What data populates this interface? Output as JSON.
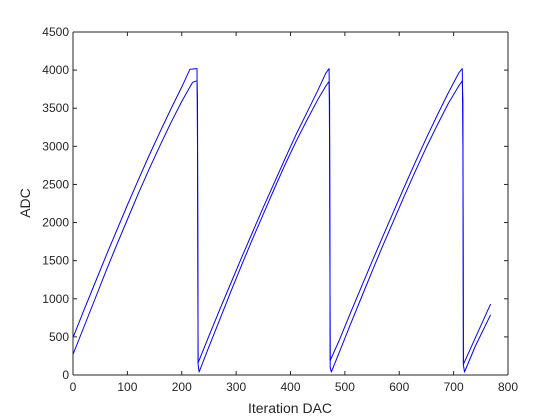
{
  "chart_data": {
    "type": "line",
    "title": "",
    "xlabel": "Iteration DAC",
    "ylabel": "ADC",
    "xlim": [
      0,
      800
    ],
    "ylim": [
      0,
      4500
    ],
    "xticks": [
      "0",
      "100",
      "200",
      "300",
      "400",
      "500",
      "600",
      "700",
      "800"
    ],
    "yticks": [
      "0",
      "500",
      "1000",
      "1500",
      "2000",
      "2500",
      "3000",
      "3500",
      "4000",
      "4500"
    ],
    "grid": false,
    "legend": "none",
    "line_color": "#0000ff",
    "series": [
      {
        "x": [
          0,
          20,
          40,
          60,
          80,
          100,
          120,
          140,
          160,
          180,
          200,
          215,
          228,
          229,
          230,
          250,
          270,
          290,
          310,
          330,
          350,
          370,
          390,
          410,
          430,
          450,
          465,
          471,
          472,
          473,
          490,
          510,
          530,
          550,
          570,
          590,
          610,
          630,
          650,
          670,
          690,
          710,
          716,
          717,
          718,
          740,
          768
        ],
        "y": [
          490,
          850,
          1200,
          1550,
          1890,
          2230,
          2560,
          2880,
          3190,
          3490,
          3780,
          4010,
          4020,
          3000,
          160,
          510,
          860,
          1200,
          1540,
          1870,
          2200,
          2520,
          2840,
          3150,
          3440,
          3730,
          3960,
          4020,
          3000,
          190,
          460,
          810,
          1150,
          1490,
          1820,
          2150,
          2480,
          2800,
          3110,
          3410,
          3700,
          3970,
          4020,
          3000,
          140,
          490,
          930
        ]
      },
      {
        "x": [
          0,
          20,
          40,
          60,
          80,
          100,
          120,
          140,
          160,
          180,
          200,
          220,
          228,
          229,
          230,
          232,
          250,
          270,
          290,
          310,
          330,
          350,
          370,
          390,
          410,
          430,
          450,
          465,
          471,
          472,
          473,
          475,
          490,
          510,
          530,
          550,
          570,
          590,
          610,
          630,
          650,
          670,
          690,
          710,
          716,
          717,
          718,
          720,
          740,
          768
        ],
        "y": [
          270,
          630,
          990,
          1350,
          1700,
          2040,
          2380,
          2700,
          3010,
          3310,
          3590,
          3840,
          3860,
          3600,
          140,
          40,
          370,
          730,
          1090,
          1440,
          1780,
          2110,
          2440,
          2760,
          3060,
          3340,
          3610,
          3790,
          3850,
          3600,
          100,
          40,
          300,
          660,
          1010,
          1360,
          1700,
          2030,
          2360,
          2680,
          2990,
          3280,
          3560,
          3800,
          3860,
          3600,
          130,
          40,
          380,
          790
        ]
      }
    ]
  }
}
